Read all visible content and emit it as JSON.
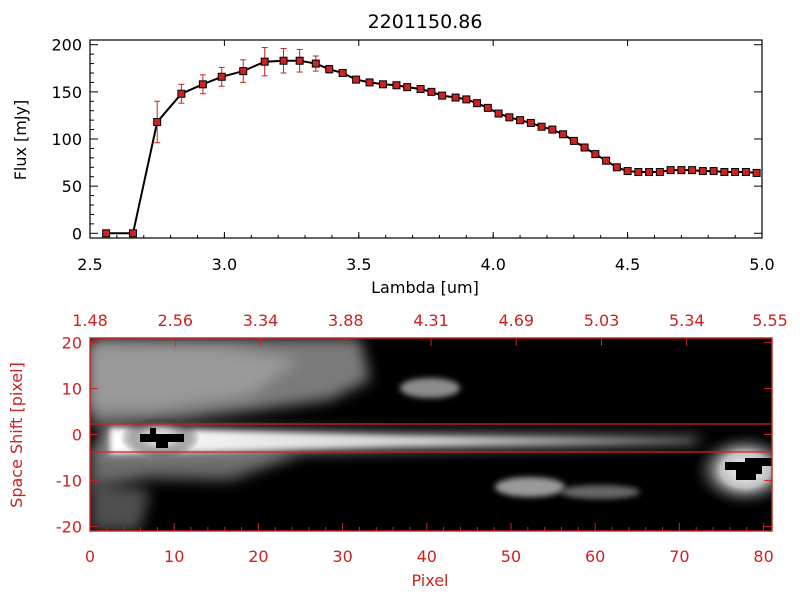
{
  "chart_data": [
    {
      "type": "line",
      "title": "2201150.86",
      "xlabel": "Lambda [um]",
      "ylabel": "Flux [mJy]",
      "xlim": [
        2.5,
        5.0
      ],
      "ylim": [
        -5,
        205
      ],
      "x_ticks": [
        "2.5",
        "3.0",
        "3.5",
        "4.0",
        "4.5",
        "5.0"
      ],
      "y_ticks": [
        "0",
        "50",
        "100",
        "150",
        "200"
      ],
      "grid": false,
      "line_color": "#000000",
      "marker_color": "#cc2222",
      "x": [
        2.56,
        2.66,
        2.75,
        2.84,
        2.92,
        2.99,
        3.07,
        3.15,
        3.22,
        3.28,
        3.34,
        3.39,
        3.44,
        3.49,
        3.54,
        3.59,
        3.64,
        3.68,
        3.73,
        3.77,
        3.81,
        3.86,
        3.9,
        3.94,
        3.98,
        4.02,
        4.06,
        4.1,
        4.14,
        4.18,
        4.22,
        4.26,
        4.3,
        4.34,
        4.38,
        4.42,
        4.46,
        4.5,
        4.54,
        4.58,
        4.62,
        4.66,
        4.7,
        4.74,
        4.78,
        4.82,
        4.86,
        4.9,
        4.94,
        4.98
      ],
      "values": [
        0,
        0,
        118,
        148,
        158,
        166,
        172,
        182,
        183,
        183,
        180,
        174,
        170,
        163,
        160,
        158,
        157,
        155,
        153,
        150,
        146,
        144,
        142,
        138,
        133,
        127,
        123,
        120,
        117,
        113,
        110,
        105,
        98,
        91,
        84,
        77,
        70,
        66,
        65,
        65,
        65,
        67,
        67,
        67,
        66,
        66,
        65,
        65,
        65,
        64
      ],
      "errors": [
        0,
        0,
        22,
        10,
        10,
        10,
        12,
        15,
        13,
        12,
        8,
        4,
        3,
        3,
        2,
        2,
        2,
        2,
        2,
        2,
        2,
        2,
        2,
        2,
        2,
        2,
        2,
        2,
        2,
        2,
        2,
        2,
        2,
        2,
        2,
        2,
        2,
        2,
        2,
        2,
        2,
        2,
        2,
        2,
        2,
        2,
        2,
        2,
        2,
        2
      ]
    },
    {
      "type": "heatmap",
      "xlabel": "Pixel",
      "ylabel": "Space Shift [pixel]",
      "xlim": [
        0,
        81
      ],
      "ylim": [
        -21,
        21
      ],
      "x_ticks": [
        "0",
        "10",
        "20",
        "30",
        "40",
        "50",
        "60",
        "70",
        "80"
      ],
      "y_ticks": [
        "-20",
        "-10",
        "0",
        "10",
        "20"
      ],
      "top_axis_ticks": [
        "1.48",
        "2.56",
        "3.34",
        "3.88",
        "4.31",
        "4.69",
        "5.03",
        "5.34",
        "5.55"
      ],
      "extraction_window": [
        -3,
        3
      ],
      "axis_color": "#cc2222",
      "colormap": "grayscale"
    }
  ]
}
